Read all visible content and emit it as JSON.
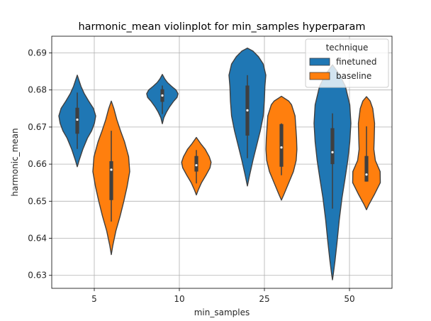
{
  "chart_data": {
    "type": "violin",
    "title": "harmonic_mean violinplot for min_samples hyperparam",
    "xlabel": "min_samples",
    "ylabel": "harmonic_mean",
    "categories": [
      "5",
      "10",
      "25",
      "50"
    ],
    "ylim": [
      0.6265,
      0.6945
    ],
    "yticks": [
      0.63,
      0.64,
      0.65,
      0.66,
      0.67,
      0.68,
      0.69
    ],
    "grid": true,
    "legend": {
      "title": "technique",
      "position": "upper-right"
    },
    "series": [
      {
        "name": "finetuned",
        "color": "#1f77b4",
        "violins": [
          {
            "category": "5",
            "profile": [
              [
                0.6593,
                0
              ],
              [
                0.661,
                0.1
              ],
              [
                0.664,
                0.3
              ],
              [
                0.667,
                0.55
              ],
              [
                0.669,
                0.78
              ],
              [
                0.671,
                0.93
              ],
              [
                0.673,
                1.0
              ],
              [
                0.675,
                0.88
              ],
              [
                0.677,
                0.62
              ],
              [
                0.679,
                0.38
              ],
              [
                0.681,
                0.2
              ],
              [
                0.6828,
                0.08
              ],
              [
                0.684,
                0
              ]
            ],
            "whisker": [
              0.6641,
              0.6793
            ],
            "box": [
              0.6682,
              0.6752
            ],
            "median": 0.672
          },
          {
            "category": "10",
            "profile": [
              [
                0.6709,
                0
              ],
              [
                0.6725,
                0.08
              ],
              [
                0.674,
                0.22
              ],
              [
                0.6755,
                0.4
              ],
              [
                0.677,
                0.62
              ],
              [
                0.678,
                0.8
              ],
              [
                0.679,
                0.85
              ],
              [
                0.68,
                0.74
              ],
              [
                0.681,
                0.5
              ],
              [
                0.682,
                0.28
              ],
              [
                0.683,
                0.13
              ],
              [
                0.6842,
                0
              ]
            ],
            "whisker": [
              0.6735,
              0.6812
            ],
            "box": [
              0.6768,
              0.6802
            ],
            "median": 0.6785
          },
          {
            "category": "25",
            "profile": [
              [
                0.6541,
                0
              ],
              [
                0.657,
                0.12
              ],
              [
                0.661,
                0.3
              ],
              [
                0.665,
                0.5
              ],
              [
                0.669,
                0.7
              ],
              [
                0.673,
                0.86
              ],
              [
                0.677,
                0.92
              ],
              [
                0.681,
                0.95
              ],
              [
                0.684,
                1.0
              ],
              [
                0.687,
                0.86
              ],
              [
                0.689,
                0.6
              ],
              [
                0.6905,
                0.3
              ],
              [
                0.6913,
                0
              ]
            ],
            "whisker": [
              0.6616,
              0.684
            ],
            "box": [
              0.6677,
              0.6812
            ],
            "median": 0.6745
          },
          {
            "category": "50",
            "profile": [
              [
                0.6288,
                0
              ],
              [
                0.6305,
                0.05
              ],
              [
                0.634,
                0.14
              ],
              [
                0.639,
                0.25
              ],
              [
                0.645,
                0.37
              ],
              [
                0.651,
                0.52
              ],
              [
                0.656,
                0.68
              ],
              [
                0.661,
                0.83
              ],
              [
                0.666,
                0.94
              ],
              [
                0.671,
                1.0
              ],
              [
                0.676,
                0.94
              ],
              [
                0.681,
                0.7
              ],
              [
                0.684,
                0.4
              ],
              [
                0.6868,
                0
              ]
            ],
            "whisker": [
              0.648,
              0.6737
            ],
            "box": [
              0.66,
              0.6697
            ],
            "median": 0.6632
          }
        ]
      },
      {
        "name": "baseline",
        "color": "#ff7f0e",
        "violins": [
          {
            "category": "5",
            "profile": [
              [
                0.6356,
                0
              ],
              [
                0.638,
                0.08
              ],
              [
                0.642,
                0.25
              ],
              [
                0.646,
                0.48
              ],
              [
                0.65,
                0.68
              ],
              [
                0.654,
                0.86
              ],
              [
                0.658,
                1.0
              ],
              [
                0.662,
                0.94
              ],
              [
                0.666,
                0.72
              ],
              [
                0.669,
                0.5
              ],
              [
                0.672,
                0.3
              ],
              [
                0.675,
                0.14
              ],
              [
                0.677,
                0
              ]
            ],
            "whisker": [
              0.6445,
              0.669
            ],
            "box": [
              0.6503,
              0.6608
            ],
            "median": 0.6585
          },
          {
            "category": "10",
            "profile": [
              [
                0.6517,
                0
              ],
              [
                0.653,
                0.1
              ],
              [
                0.655,
                0.28
              ],
              [
                0.657,
                0.52
              ],
              [
                0.659,
                0.74
              ],
              [
                0.6605,
                0.8
              ],
              [
                0.662,
                0.7
              ],
              [
                0.664,
                0.48
              ],
              [
                0.6655,
                0.24
              ],
              [
                0.6672,
                0
              ]
            ],
            "whisker": [
              0.6548,
              0.6638
            ],
            "box": [
              0.658,
              0.6622
            ],
            "median": 0.6597
          },
          {
            "category": "25",
            "profile": [
              [
                0.6503,
                0
              ],
              [
                0.652,
                0.15
              ],
              [
                0.655,
                0.4
              ],
              [
                0.658,
                0.65
              ],
              [
                0.661,
                0.8
              ],
              [
                0.664,
                0.84
              ],
              [
                0.667,
                0.82
              ],
              [
                0.67,
                0.78
              ],
              [
                0.673,
                0.74
              ],
              [
                0.676,
                0.55
              ],
              [
                0.677,
                0.4
              ],
              [
                0.6783,
                0
              ]
            ],
            "whisker": [
              0.657,
              0.671
            ],
            "box": [
              0.6593,
              0.6708
            ],
            "median": 0.6645
          },
          {
            "category": "50",
            "profile": [
              [
                0.6477,
                0
              ],
              [
                0.649,
                0.12
              ],
              [
                0.652,
                0.45
              ],
              [
                0.655,
                0.75
              ],
              [
                0.658,
                0.74
              ],
              [
                0.661,
                0.48
              ],
              [
                0.664,
                0.4
              ],
              [
                0.667,
                0.42
              ],
              [
                0.671,
                0.44
              ],
              [
                0.675,
                0.34
              ],
              [
                0.677,
                0.2
              ],
              [
                0.6782,
                0
              ]
            ],
            "whisker": [
              0.6553,
              0.6702
            ],
            "box": [
              0.6553,
              0.6622
            ],
            "median": 0.6572
          }
        ]
      }
    ]
  }
}
